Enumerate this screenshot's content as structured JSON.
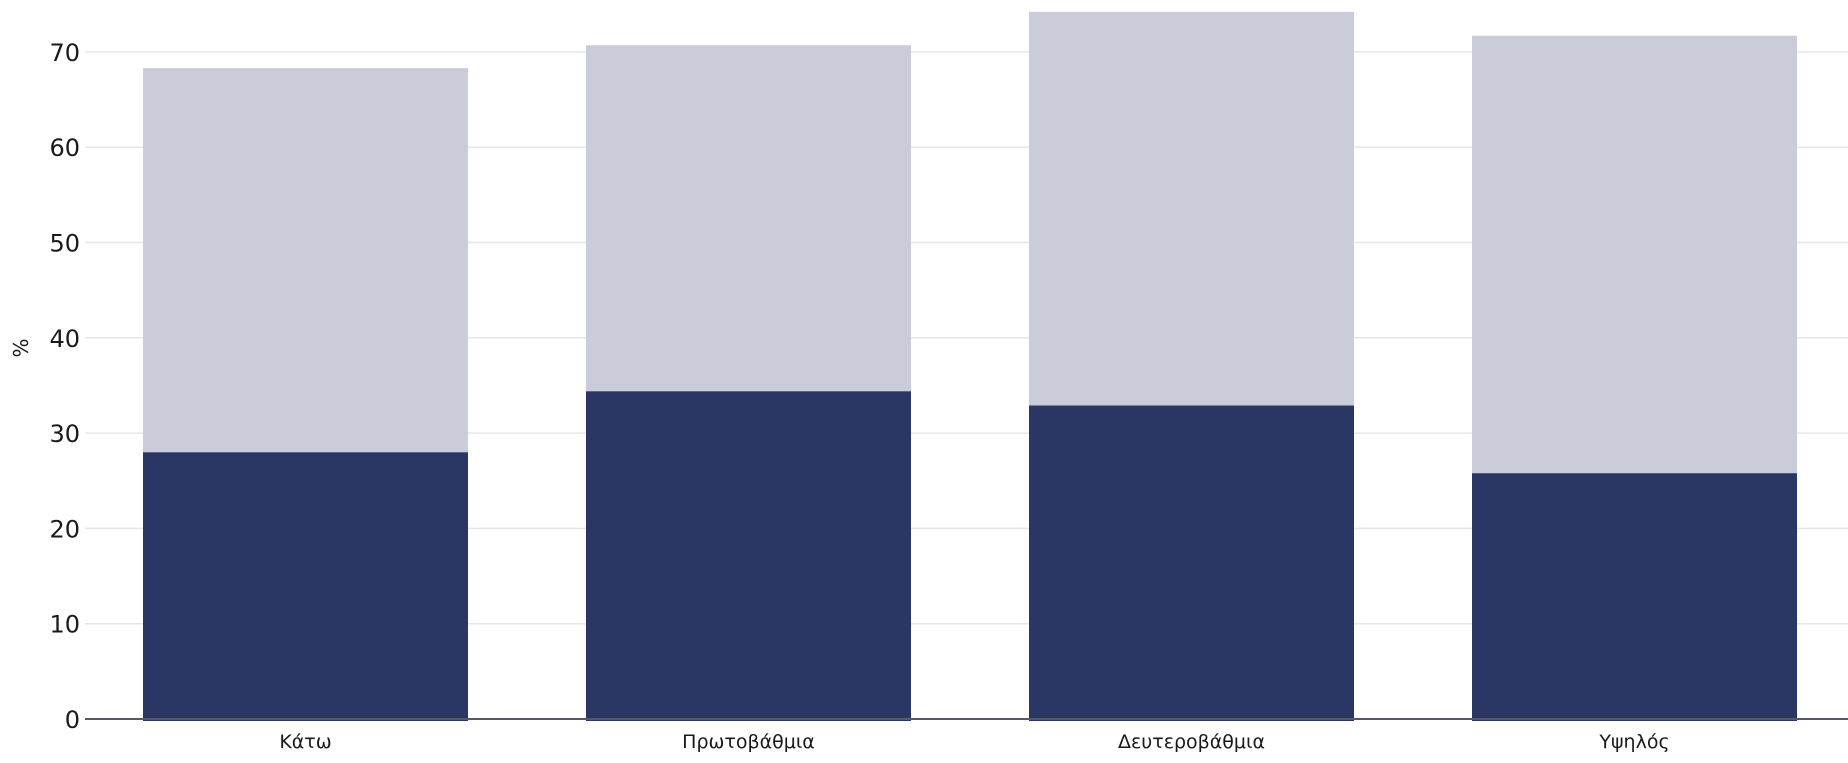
{
  "chart_data": {
    "type": "bar",
    "stacked": true,
    "title": "",
    "xlabel": "",
    "ylabel": "%",
    "ylim": [
      0,
      74.5
    ],
    "yticks": [
      0,
      10,
      20,
      30,
      40,
      50,
      60,
      70
    ],
    "grid": true,
    "legend": "none",
    "categories": [
      "Κάτω",
      "Πρωτοβάθμια",
      "Δευτεροβάθμια",
      "Υψηλός"
    ],
    "series": [
      {
        "values": [
          28.0,
          34.4,
          32.9,
          25.8
        ],
        "color": "#2a3664"
      },
      {
        "values": [
          40.3,
          36.3,
          41.3,
          45.9
        ],
        "color": "#cacdd9"
      }
    ]
  }
}
